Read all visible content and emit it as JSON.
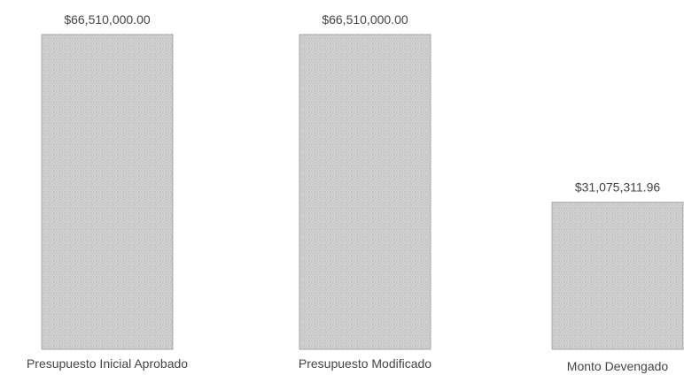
{
  "chart_data": {
    "type": "bar",
    "title": "",
    "xlabel": "",
    "ylabel": "",
    "categories": [
      "Presupuesto Inicial Aprobado",
      "Presupuesto Modificado",
      "Monto Devengado"
    ],
    "values": [
      66510000.0,
      66510000.0,
      31075311.96
    ],
    "value_labels": [
      "$66,510,000.00",
      "$66,510,000.00",
      "$31,075,311.96"
    ],
    "ylim": [
      0,
      66510000
    ],
    "grid": false,
    "legend": "none",
    "colors": {
      "bar_fill": "#d2d2d2",
      "bar_dots": "#8c8c8c",
      "bar_edge": "#9a9a9a",
      "text": "#444444"
    }
  }
}
